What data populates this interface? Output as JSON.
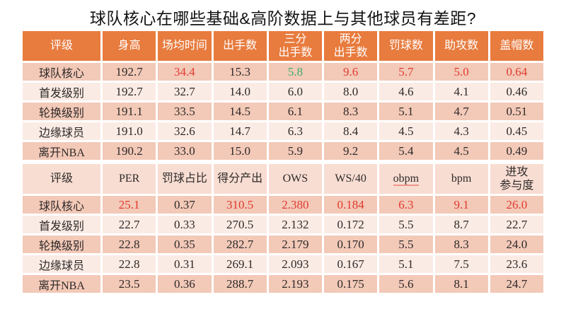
{
  "title": "球队核心在哪些基础&高阶数据上与其他球员有差距?",
  "colors": {
    "header_orange": "#E87B3E",
    "header2_pink": "#F8DDD3",
    "row_dark": "#F3C9B8",
    "row_light": "#FBEBE5",
    "highlight_red": "#E03A2F",
    "highlight_green": "#3BAE6E",
    "text_dark": "#2E2A28"
  },
  "basic_table": {
    "headers": [
      {
        "t": "评级"
      },
      {
        "t": "身高"
      },
      {
        "t": "场均时间"
      },
      {
        "t": "出手数"
      },
      {
        "t": "三分\n出手数"
      },
      {
        "t": "两分\n出手数"
      },
      {
        "t": "罚球数"
      },
      {
        "t": "助攻数"
      },
      {
        "t": "盖帽数"
      }
    ],
    "rows": [
      {
        "label": "球队核心",
        "cells": [
          [
            "192.7"
          ],
          [
            "34.4",
            "red"
          ],
          [
            "15.3"
          ],
          [
            "5.8",
            "green"
          ],
          [
            "9.6",
            "red"
          ],
          [
            "5.7",
            "red"
          ],
          [
            "5.0",
            "red"
          ],
          [
            "0.64",
            "red"
          ]
        ]
      },
      {
        "label": "首发级别",
        "cells": [
          [
            "192.7"
          ],
          [
            "32.7"
          ],
          [
            "14.0"
          ],
          [
            "6.0"
          ],
          [
            "8.0"
          ],
          [
            "4.6"
          ],
          [
            "4.1"
          ],
          [
            "0.46"
          ]
        ]
      },
      {
        "label": "轮换级别",
        "cells": [
          [
            "191.1"
          ],
          [
            "33.5"
          ],
          [
            "14.5"
          ],
          [
            "6.1"
          ],
          [
            "8.3"
          ],
          [
            "5.1"
          ],
          [
            "4.7"
          ],
          [
            "0.51"
          ]
        ]
      },
      {
        "label": "边缘球员",
        "cells": [
          [
            "191.0"
          ],
          [
            "32.6"
          ],
          [
            "14.7"
          ],
          [
            "6.3"
          ],
          [
            "8.4"
          ],
          [
            "4.5"
          ],
          [
            "4.3"
          ],
          [
            "0.45"
          ]
        ]
      },
      {
        "label": "离开NBA",
        "cells": [
          [
            "190.2"
          ],
          [
            "33.0"
          ],
          [
            "15.0"
          ],
          [
            "5.9"
          ],
          [
            "9.2"
          ],
          [
            "5.4"
          ],
          [
            "4.5"
          ],
          [
            "0.49"
          ]
        ]
      }
    ]
  },
  "advanced_table": {
    "headers": [
      {
        "t": "评级"
      },
      {
        "t": "PER"
      },
      {
        "t": "罚球占比"
      },
      {
        "t": "得分产出"
      },
      {
        "t": "OWS"
      },
      {
        "t": "WS/40"
      },
      {
        "t": "obpm",
        "underline": true
      },
      {
        "t": "bpm"
      },
      {
        "t": "进攻\n参与度"
      }
    ],
    "rows": [
      {
        "label": "球队核心",
        "cells": [
          [
            "25.1",
            "red"
          ],
          [
            "0.37"
          ],
          [
            "310.5",
            "red"
          ],
          [
            "2.380",
            "red"
          ],
          [
            "0.184",
            "red"
          ],
          [
            "6.3",
            "red"
          ],
          [
            "9.1",
            "red"
          ],
          [
            "26.0",
            "red"
          ]
        ]
      },
      {
        "label": "首发级别",
        "cells": [
          [
            "22.7"
          ],
          [
            "0.33"
          ],
          [
            "270.5"
          ],
          [
            "2.132"
          ],
          [
            "0.172"
          ],
          [
            "5.5"
          ],
          [
            "8.7"
          ],
          [
            "22.7"
          ]
        ]
      },
      {
        "label": "轮换级别",
        "cells": [
          [
            "22.8"
          ],
          [
            "0.35"
          ],
          [
            "282.7"
          ],
          [
            "2.179"
          ],
          [
            "0.170"
          ],
          [
            "5.5"
          ],
          [
            "8.3"
          ],
          [
            "24.0"
          ]
        ]
      },
      {
        "label": "边缘球员",
        "cells": [
          [
            "22.8"
          ],
          [
            "0.31"
          ],
          [
            "269.1"
          ],
          [
            "2.093"
          ],
          [
            "0.167"
          ],
          [
            "5.1"
          ],
          [
            "7.5"
          ],
          [
            "23.6"
          ]
        ]
      },
      {
        "label": "离开NBA",
        "cells": [
          [
            "23.5"
          ],
          [
            "0.36"
          ],
          [
            "288.7"
          ],
          [
            "2.193"
          ],
          [
            "0.175"
          ],
          [
            "5.6"
          ],
          [
            "8.1"
          ],
          [
            "24.7"
          ]
        ]
      }
    ]
  }
}
